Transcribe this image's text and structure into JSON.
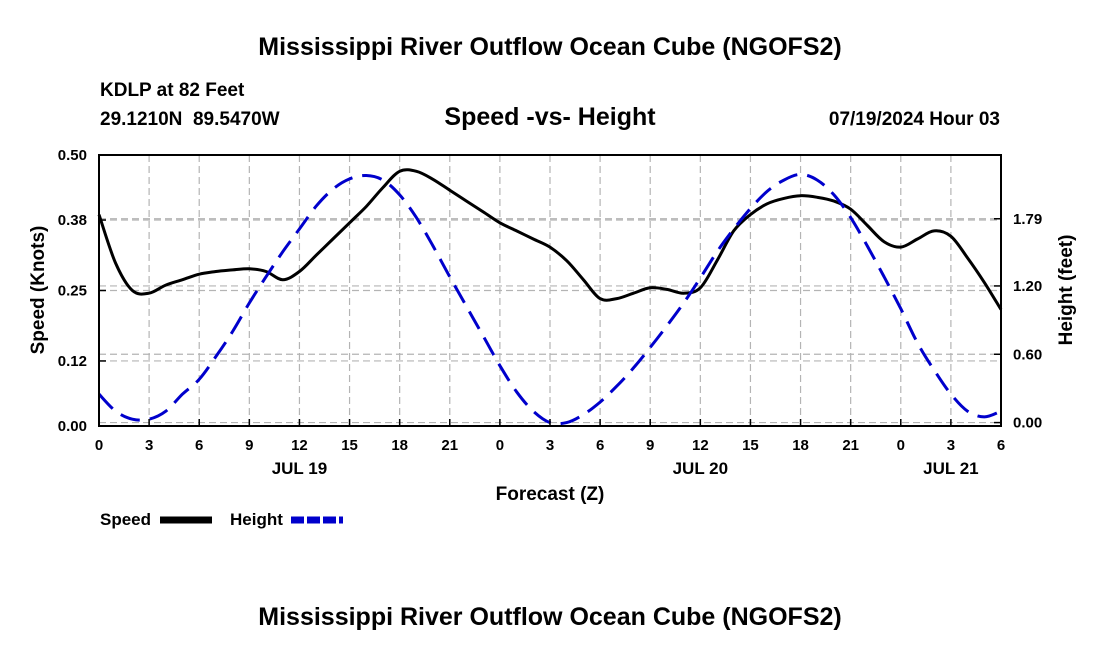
{
  "page": {
    "title": "Mississippi River Outflow Ocean Cube (NGOFS2)",
    "station": "KDLP at 82 Feet",
    "coords": "29.1210N  89.5470W",
    "datetime": "07/19/2024 Hour 03",
    "footer_title": "Mississippi River Outflow Ocean Cube (NGOFS2)"
  },
  "chart_data": {
    "type": "line",
    "title": "Speed -vs- Height",
    "xlabel": "Forecast (Z)",
    "ylabel": "Speed (Knots)",
    "y2label": "Height (feet)",
    "xlim": [
      0,
      54
    ],
    "ylim": [
      0,
      0.5
    ],
    "y2lim": [
      -0.03,
      2.35
    ],
    "grid": true,
    "x_ticks": [
      0,
      3,
      6,
      9,
      12,
      15,
      18,
      21,
      24,
      27,
      30,
      33,
      36,
      39,
      42,
      45,
      48,
      51,
      54
    ],
    "x_tick_labels": [
      "0",
      "3",
      "6",
      "9",
      "12",
      "15",
      "18",
      "21",
      "0",
      "3",
      "6",
      "9",
      "12",
      "15",
      "18",
      "21",
      "0",
      "3",
      "6"
    ],
    "date_labels": [
      {
        "x": 12,
        "text": "JUL 19"
      },
      {
        "x": 36,
        "text": "JUL 20"
      },
      {
        "x": 51,
        "text": "JUL 21"
      }
    ],
    "y_ticks": [
      0.0,
      0.12,
      0.25,
      0.38,
      0.5
    ],
    "y_tick_labels": [
      "0.00",
      "0.12",
      "0.25",
      "0.38",
      "0.50"
    ],
    "y2_ticks": [
      0.0,
      0.6,
      1.2,
      1.79
    ],
    "y2_tick_labels": [
      "0.00",
      "0.60",
      "1.20",
      "1.79"
    ],
    "series": [
      {
        "name": "Speed",
        "axis": "left",
        "color": "#000000",
        "style": "solid",
        "x": [
          0,
          1,
          2,
          3,
          4,
          5,
          6,
          7,
          8,
          9,
          10,
          11,
          12,
          13,
          14,
          15,
          16,
          17,
          18,
          19,
          20,
          21,
          22,
          23,
          24,
          25,
          26,
          27,
          28,
          29,
          30,
          31,
          32,
          33,
          34,
          35,
          36,
          37,
          38,
          39,
          40,
          41,
          42,
          43,
          44,
          45,
          46,
          47,
          48,
          49,
          50,
          51,
          52,
          53,
          54
        ],
        "y": [
          0.39,
          0.3,
          0.25,
          0.245,
          0.26,
          0.27,
          0.28,
          0.285,
          0.288,
          0.29,
          0.285,
          0.27,
          0.285,
          0.315,
          0.345,
          0.375,
          0.405,
          0.44,
          0.47,
          0.47,
          0.455,
          0.435,
          0.415,
          0.395,
          0.375,
          0.36,
          0.345,
          0.33,
          0.305,
          0.27,
          0.235,
          0.235,
          0.245,
          0.255,
          0.252,
          0.245,
          0.255,
          0.305,
          0.36,
          0.39,
          0.41,
          0.42,
          0.425,
          0.422,
          0.415,
          0.4,
          0.37,
          0.34,
          0.33,
          0.345,
          0.36,
          0.35,
          0.31,
          0.265,
          0.215
        ]
      },
      {
        "name": "Height",
        "axis": "right",
        "color": "#0000cc",
        "style": "dashed",
        "x": [
          0,
          1,
          2,
          3,
          4,
          5,
          6,
          7,
          8,
          9,
          10,
          11,
          12,
          13,
          14,
          15,
          16,
          17,
          18,
          19,
          20,
          21,
          22,
          23,
          24,
          25,
          26,
          27,
          28,
          29,
          30,
          31,
          32,
          33,
          34,
          35,
          36,
          37,
          38,
          39,
          40,
          41,
          42,
          43,
          44,
          45,
          46,
          47,
          48,
          49,
          50,
          51,
          52,
          53,
          54
        ],
        "y": [
          0.25,
          0.1,
          0.03,
          0.03,
          0.1,
          0.25,
          0.38,
          0.58,
          0.8,
          1.05,
          1.28,
          1.5,
          1.7,
          1.9,
          2.05,
          2.14,
          2.17,
          2.13,
          2.0,
          1.8,
          1.55,
          1.28,
          1.02,
          0.76,
          0.5,
          0.27,
          0.1,
          0.0,
          0.0,
          0.07,
          0.18,
          0.32,
          0.48,
          0.66,
          0.85,
          1.05,
          1.27,
          1.5,
          1.7,
          1.88,
          2.03,
          2.13,
          2.18,
          2.13,
          2.0,
          1.8,
          1.55,
          1.28,
          1.0,
          0.7,
          0.46,
          0.25,
          0.1,
          0.05,
          0.1
        ]
      }
    ],
    "legend": [
      {
        "label": "Speed",
        "color": "#000000",
        "style": "solid"
      },
      {
        "label": "Height",
        "color": "#0000cc",
        "style": "dashed"
      }
    ]
  }
}
